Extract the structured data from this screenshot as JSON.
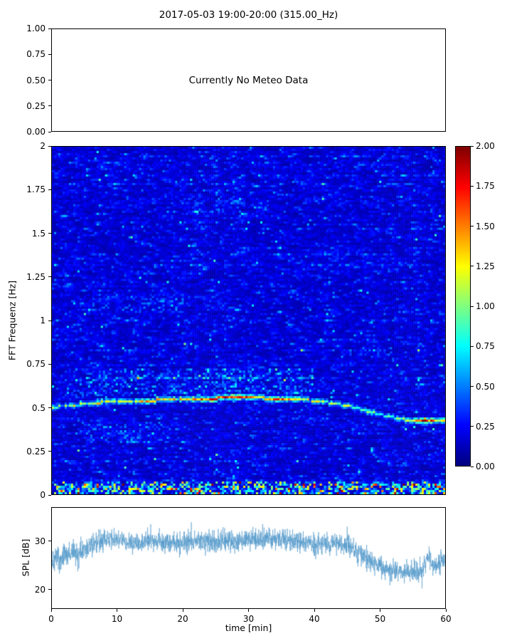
{
  "figure": {
    "title": "2017-05-03 19:00-20:00 (315.00_Hz)"
  },
  "chart_data": [
    {
      "id": "meteo-panel",
      "type": "text",
      "text": "Currently No Meteo Data",
      "ylim": [
        0,
        1
      ],
      "yticks": [
        {
          "v": 1.0,
          "label": "1.00"
        },
        {
          "v": 0.75,
          "label": "0.75"
        },
        {
          "v": 0.5,
          "label": "0.50"
        },
        {
          "v": 0.25,
          "label": "0.25"
        },
        {
          "v": 0.0,
          "label": "0.00"
        }
      ]
    },
    {
      "id": "spectrogram",
      "type": "heatmap",
      "ylabel": "FFT Frequenz [Hz]",
      "xlim": [
        0,
        60
      ],
      "ylim": [
        0,
        2
      ],
      "vmin": 0,
      "vmax": 2,
      "colormap": "jet",
      "yticks": [
        {
          "v": 2,
          "label": "2"
        },
        {
          "v": 1.75,
          "label": "1.75"
        },
        {
          "v": 1.5,
          "label": "1.5"
        },
        {
          "v": 1.25,
          "label": "1.25"
        },
        {
          "v": 1,
          "label": "1"
        },
        {
          "v": 0.75,
          "label": "0.75"
        },
        {
          "v": 0.5,
          "label": "0.5"
        },
        {
          "v": 0.25,
          "label": "0.25"
        },
        {
          "v": 0,
          "label": "0"
        }
      ],
      "colorbar_ticks": [
        {
          "v": 2,
          "label": "2.00"
        },
        {
          "v": 1.75,
          "label": "1.75"
        },
        {
          "v": 1.5,
          "label": "1.50"
        },
        {
          "v": 1.25,
          "label": "1.25"
        },
        {
          "v": 1,
          "label": "1.00"
        },
        {
          "v": 0.75,
          "label": "0.75"
        },
        {
          "v": 0.5,
          "label": "0.50"
        },
        {
          "v": 0.25,
          "label": "0.25"
        },
        {
          "v": 0,
          "label": "0.00"
        }
      ],
      "background_level": {
        "base": 0.06,
        "noise": 0.13
      },
      "ridge_track": [
        [
          0,
          0.5,
          1.0
        ],
        [
          4,
          0.515,
          1.2
        ],
        [
          8,
          0.53,
          1.1
        ],
        [
          12,
          0.535,
          1.2
        ],
        [
          16,
          0.54,
          1.3
        ],
        [
          20,
          0.545,
          1.2
        ],
        [
          24,
          0.55,
          1.5
        ],
        [
          27,
          0.555,
          1.9
        ],
        [
          30,
          0.555,
          1.4
        ],
        [
          34,
          0.55,
          1.5
        ],
        [
          38,
          0.545,
          1.2
        ],
        [
          42,
          0.53,
          1.0
        ],
        [
          46,
          0.5,
          0.95
        ],
        [
          50,
          0.46,
          0.9
        ],
        [
          53,
          0.435,
          0.85
        ],
        [
          55,
          0.42,
          1.0
        ],
        [
          57,
          0.42,
          1.9
        ],
        [
          58,
          0.425,
          1.5
        ],
        [
          60,
          0.42,
          1.0
        ]
      ],
      "faint_patches": [
        [
          4,
          20,
          1.04,
          1.15,
          0.22
        ],
        [
          20,
          33,
          1.6,
          1.7,
          0.16
        ],
        [
          2,
          40,
          0.57,
          0.72,
          0.3
        ],
        [
          44,
          52,
          0.78,
          0.85,
          0.22
        ],
        [
          5,
          18,
          0.3,
          0.42,
          0.22
        ],
        [
          0,
          60,
          0.0,
          0.07,
          0.8
        ]
      ],
      "low_freq_bright_max_hz": 0.06
    },
    {
      "id": "spl",
      "type": "line",
      "color": "#4d94c8",
      "ylabel": "SPL [dB]",
      "xlabel": "time [min]",
      "xlim": [
        0,
        60
      ],
      "ylim": [
        16,
        37
      ],
      "xticks": [
        {
          "v": 0,
          "label": "0"
        },
        {
          "v": 10,
          "label": "10"
        },
        {
          "v": 20,
          "label": "20"
        },
        {
          "v": 30,
          "label": "30"
        },
        {
          "v": 40,
          "label": "40"
        },
        {
          "v": 50,
          "label": "50"
        },
        {
          "v": 60,
          "label": "60"
        }
      ],
      "yticks": [
        {
          "v": 30,
          "label": "30"
        },
        {
          "v": 20,
          "label": "20"
        }
      ],
      "mean_track": [
        [
          0,
          25.5
        ],
        [
          1.5,
          26.5
        ],
        [
          3,
          27.5
        ],
        [
          5,
          28.5
        ],
        [
          7,
          30
        ],
        [
          10,
          30.5
        ],
        [
          13,
          29.5
        ],
        [
          16,
          30
        ],
        [
          19,
          29.5
        ],
        [
          22,
          30
        ],
        [
          25,
          30
        ],
        [
          28,
          30
        ],
        [
          31,
          30.5
        ],
        [
          34,
          30.5
        ],
        [
          37,
          30
        ],
        [
          40,
          29.5
        ],
        [
          43,
          29.5
        ],
        [
          45,
          29
        ],
        [
          47,
          27.5
        ],
        [
          49,
          25.5
        ],
        [
          51,
          24
        ],
        [
          53,
          23.5
        ],
        [
          55,
          23.5
        ],
        [
          56.5,
          24
        ],
        [
          57.4,
          27
        ],
        [
          58.2,
          24.5
        ],
        [
          59,
          25
        ],
        [
          60,
          26.5
        ]
      ],
      "noise_amp": 2.6
    }
  ]
}
